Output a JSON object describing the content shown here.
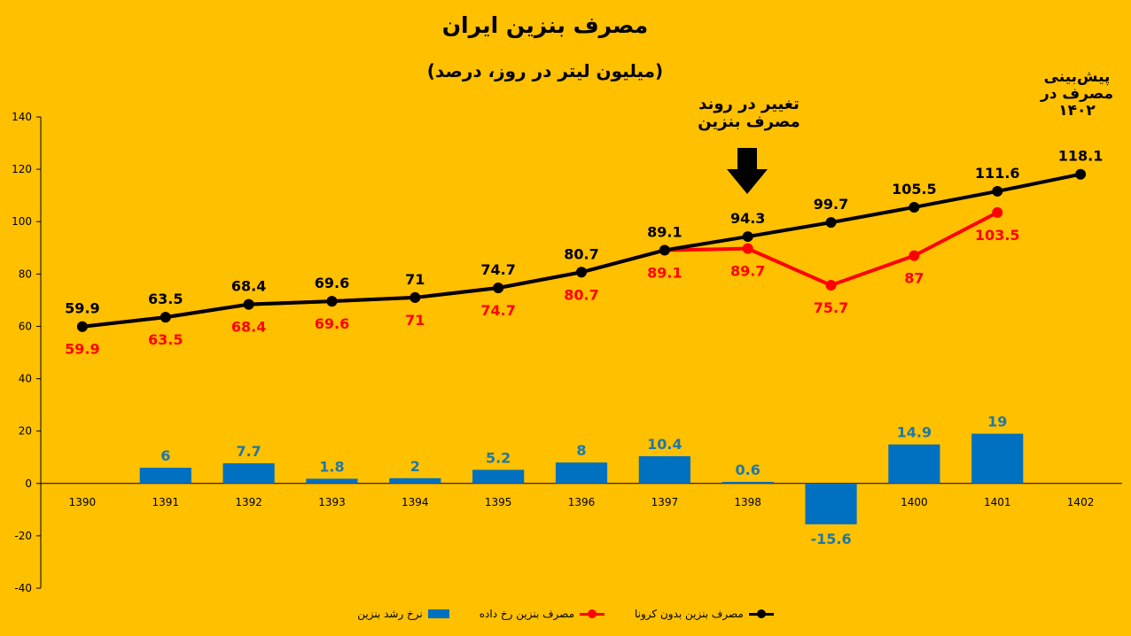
{
  "chart_data": {
    "type": "bar+line",
    "title": "مصرف بنزین ایران",
    "subtitle": "(میلیون لیتر در روز، درصد)",
    "categories": [
      "1390",
      "1391",
      "1392",
      "1393",
      "1394",
      "1395",
      "1396",
      "1397",
      "1398",
      "1399",
      "1400",
      "1401",
      "1402"
    ],
    "ylim": [
      -40,
      140
    ],
    "yticks": [
      -40,
      -20,
      0,
      20,
      40,
      60,
      80,
      100,
      120,
      140
    ],
    "grid": false,
    "legend_position": "bottom",
    "series": [
      {
        "name": "نرخ رشد بنزین",
        "kind": "bar",
        "color": "#0070C0",
        "label_color": "#1F78A8",
        "values": [
          null,
          6,
          7.7,
          1.8,
          2,
          5.2,
          8,
          10.4,
          0.6,
          -15.6,
          14.9,
          19,
          null
        ],
        "labels": [
          "",
          "6",
          "7.7",
          "1.8",
          "2",
          "5.2",
          "8",
          "10.4",
          "0.6",
          "-15.6",
          "14.9",
          "19",
          ""
        ]
      },
      {
        "name": "مصرف بنزین رخ داده",
        "kind": "line",
        "color": "#FF0000",
        "values": [
          59.9,
          63.5,
          68.4,
          69.6,
          71,
          74.7,
          80.7,
          89.1,
          89.7,
          75.7,
          87,
          103.5,
          null
        ],
        "labels": [
          "59.9",
          "63.5",
          "68.4",
          "69.6",
          "71",
          "74.7",
          "80.7",
          "89.1",
          "89.7",
          "75.7",
          "87",
          "103.5",
          ""
        ]
      },
      {
        "name": "مصرف بنزین بدون کرونا",
        "kind": "line",
        "color": "#000000",
        "values": [
          59.9,
          63.5,
          68.4,
          69.6,
          71,
          74.7,
          80.7,
          89.1,
          94.3,
          99.7,
          105.5,
          111.6,
          118.1
        ],
        "labels": [
          "59.9",
          "63.5",
          "68.4",
          "69.6",
          "71",
          "74.7",
          "80.7",
          "89.1",
          "94.3",
          "99.7",
          "105.5",
          "111.6",
          "118.1"
        ]
      }
    ],
    "annotations": [
      {
        "text_line1": "تغییر در روند",
        "text_line2": "مصرف بنزین",
        "at": "1398"
      },
      {
        "text_line1": "پیش‌بینی",
        "text_line2": "مصرف در",
        "text_line3": "۱۴۰۲",
        "at": "1402"
      }
    ]
  }
}
